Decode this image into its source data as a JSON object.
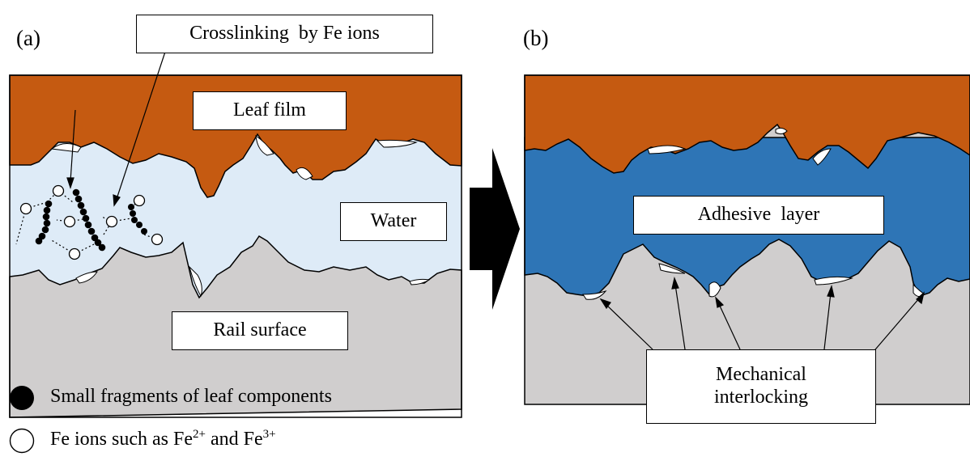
{
  "panel_a": {
    "label": "(a)",
    "callout": "Crosslinking  by Fe ions",
    "leaf_film": "Leaf film",
    "water": "Water",
    "rail_surface": "Rail surface"
  },
  "panel_b": {
    "label": "(b)",
    "adhesive_layer": "Adhesive  layer",
    "interlocking_line1": "Mechanical",
    "interlocking_line2": "interlocking"
  },
  "legend": {
    "filled_label": "Small fragments of leaf components",
    "open_label_prefix": "Fe ions such as Fe",
    "open_sup1": "2+",
    "open_mid": " and Fe",
    "open_sup2": "3+"
  },
  "colors": {
    "leaf": "#c55a11",
    "water": "#deebf7",
    "rail": "#d0cece",
    "adhesive": "#2e75b6"
  }
}
